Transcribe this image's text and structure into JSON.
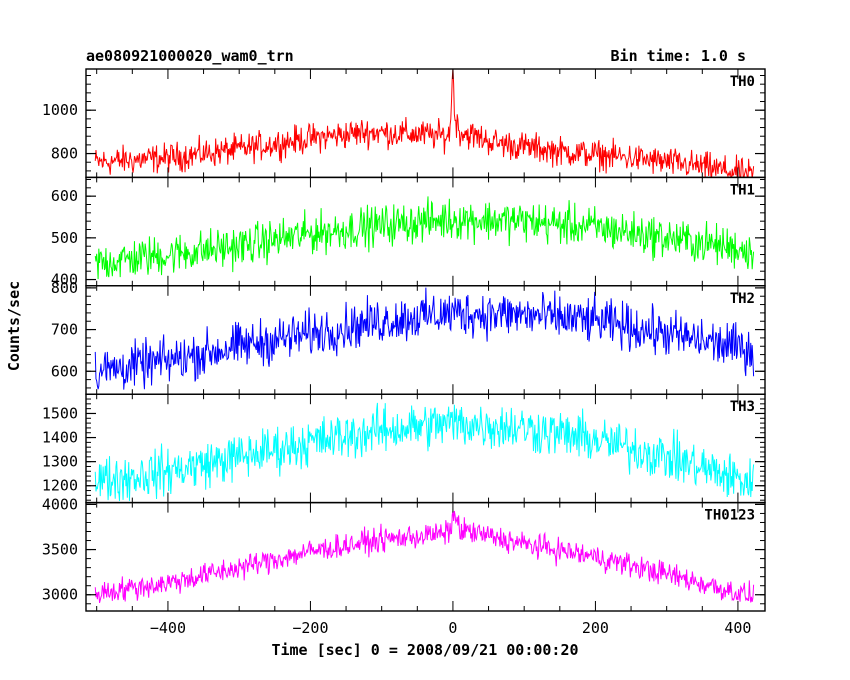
{
  "header": {
    "title": "ae080921000020_wam0_trn",
    "bin_time": "Bin time: 1.0 s"
  },
  "axes": {
    "xlabel": "Time [sec] 0 = 2008/09/21 00:00:20",
    "ylabel": "Counts/sec"
  },
  "chart_data": {
    "type": "line",
    "title": "ae080921000020_wam0_trn",
    "xlabel": "Time [sec] 0 = 2008/09/21 00:00:20",
    "ylabel": "Counts/sec",
    "xlim": [
      -515,
      438
    ],
    "x_ticks": [
      -400,
      -200,
      0,
      200,
      400
    ],
    "x_range_data": [
      -502,
      422
    ],
    "bin_time_s": 1.0,
    "panels": [
      {
        "name": "TH0",
        "color": "#ff0000",
        "ylim": [
          690,
          1190
        ],
        "y_ticks": [
          800,
          1000
        ],
        "profile": [
          [
            -500,
            760
          ],
          [
            -400,
            780
          ],
          [
            -300,
            820
          ],
          [
            -200,
            870
          ],
          [
            -120,
            900
          ],
          [
            -60,
            890
          ],
          [
            -5,
            880
          ],
          [
            0,
            1180
          ],
          [
            3,
            960
          ],
          [
            10,
            900
          ],
          [
            60,
            850
          ],
          [
            150,
            810
          ],
          [
            250,
            780
          ],
          [
            350,
            740
          ],
          [
            420,
            700
          ]
        ],
        "noise_amplitude": 55
      },
      {
        "name": "TH1",
        "color": "#00ff00",
        "ylim": [
          385,
          645
        ],
        "y_ticks": [
          400,
          500,
          600
        ],
        "profile": [
          [
            -500,
            440
          ],
          [
            -400,
            460
          ],
          [
            -300,
            480
          ],
          [
            -200,
            510
          ],
          [
            -100,
            530
          ],
          [
            0,
            545
          ],
          [
            100,
            540
          ],
          [
            200,
            525
          ],
          [
            300,
            500
          ],
          [
            420,
            470
          ]
        ],
        "noise_amplitude": 40
      },
      {
        "name": "TH2",
        "color": "#0000ff",
        "ylim": [
          545,
          805
        ],
        "y_ticks": [
          600,
          700,
          800
        ],
        "profile": [
          [
            -500,
            600
          ],
          [
            -400,
            625
          ],
          [
            -300,
            660
          ],
          [
            -200,
            690
          ],
          [
            -100,
            720
          ],
          [
            0,
            740
          ],
          [
            100,
            735
          ],
          [
            200,
            720
          ],
          [
            300,
            690
          ],
          [
            420,
            650
          ]
        ],
        "noise_amplitude": 45
      },
      {
        "name": "TH3",
        "color": "#00ffff",
        "ylim": [
          1130,
          1580
        ],
        "y_ticks": [
          1200,
          1300,
          1400,
          1500
        ],
        "profile": [
          [
            -500,
            1220
          ],
          [
            -400,
            1260
          ],
          [
            -300,
            1320
          ],
          [
            -200,
            1380
          ],
          [
            -100,
            1430
          ],
          [
            0,
            1460
          ],
          [
            100,
            1440
          ],
          [
            200,
            1390
          ],
          [
            300,
            1320
          ],
          [
            420,
            1210
          ]
        ],
        "noise_amplitude": 80
      },
      {
        "name": "TH0123",
        "color": "#ff00ff",
        "ylim": [
          2820,
          4020
        ],
        "y_ticks": [
          3000,
          3500,
          4000
        ],
        "profile": [
          [
            -500,
            3020
          ],
          [
            -400,
            3130
          ],
          [
            -300,
            3300
          ],
          [
            -200,
            3480
          ],
          [
            -100,
            3610
          ],
          [
            -5,
            3680
          ],
          [
            0,
            3900
          ],
          [
            10,
            3720
          ],
          [
            100,
            3560
          ],
          [
            200,
            3420
          ],
          [
            300,
            3230
          ],
          [
            420,
            2980
          ]
        ],
        "noise_amplitude": 110
      }
    ]
  }
}
